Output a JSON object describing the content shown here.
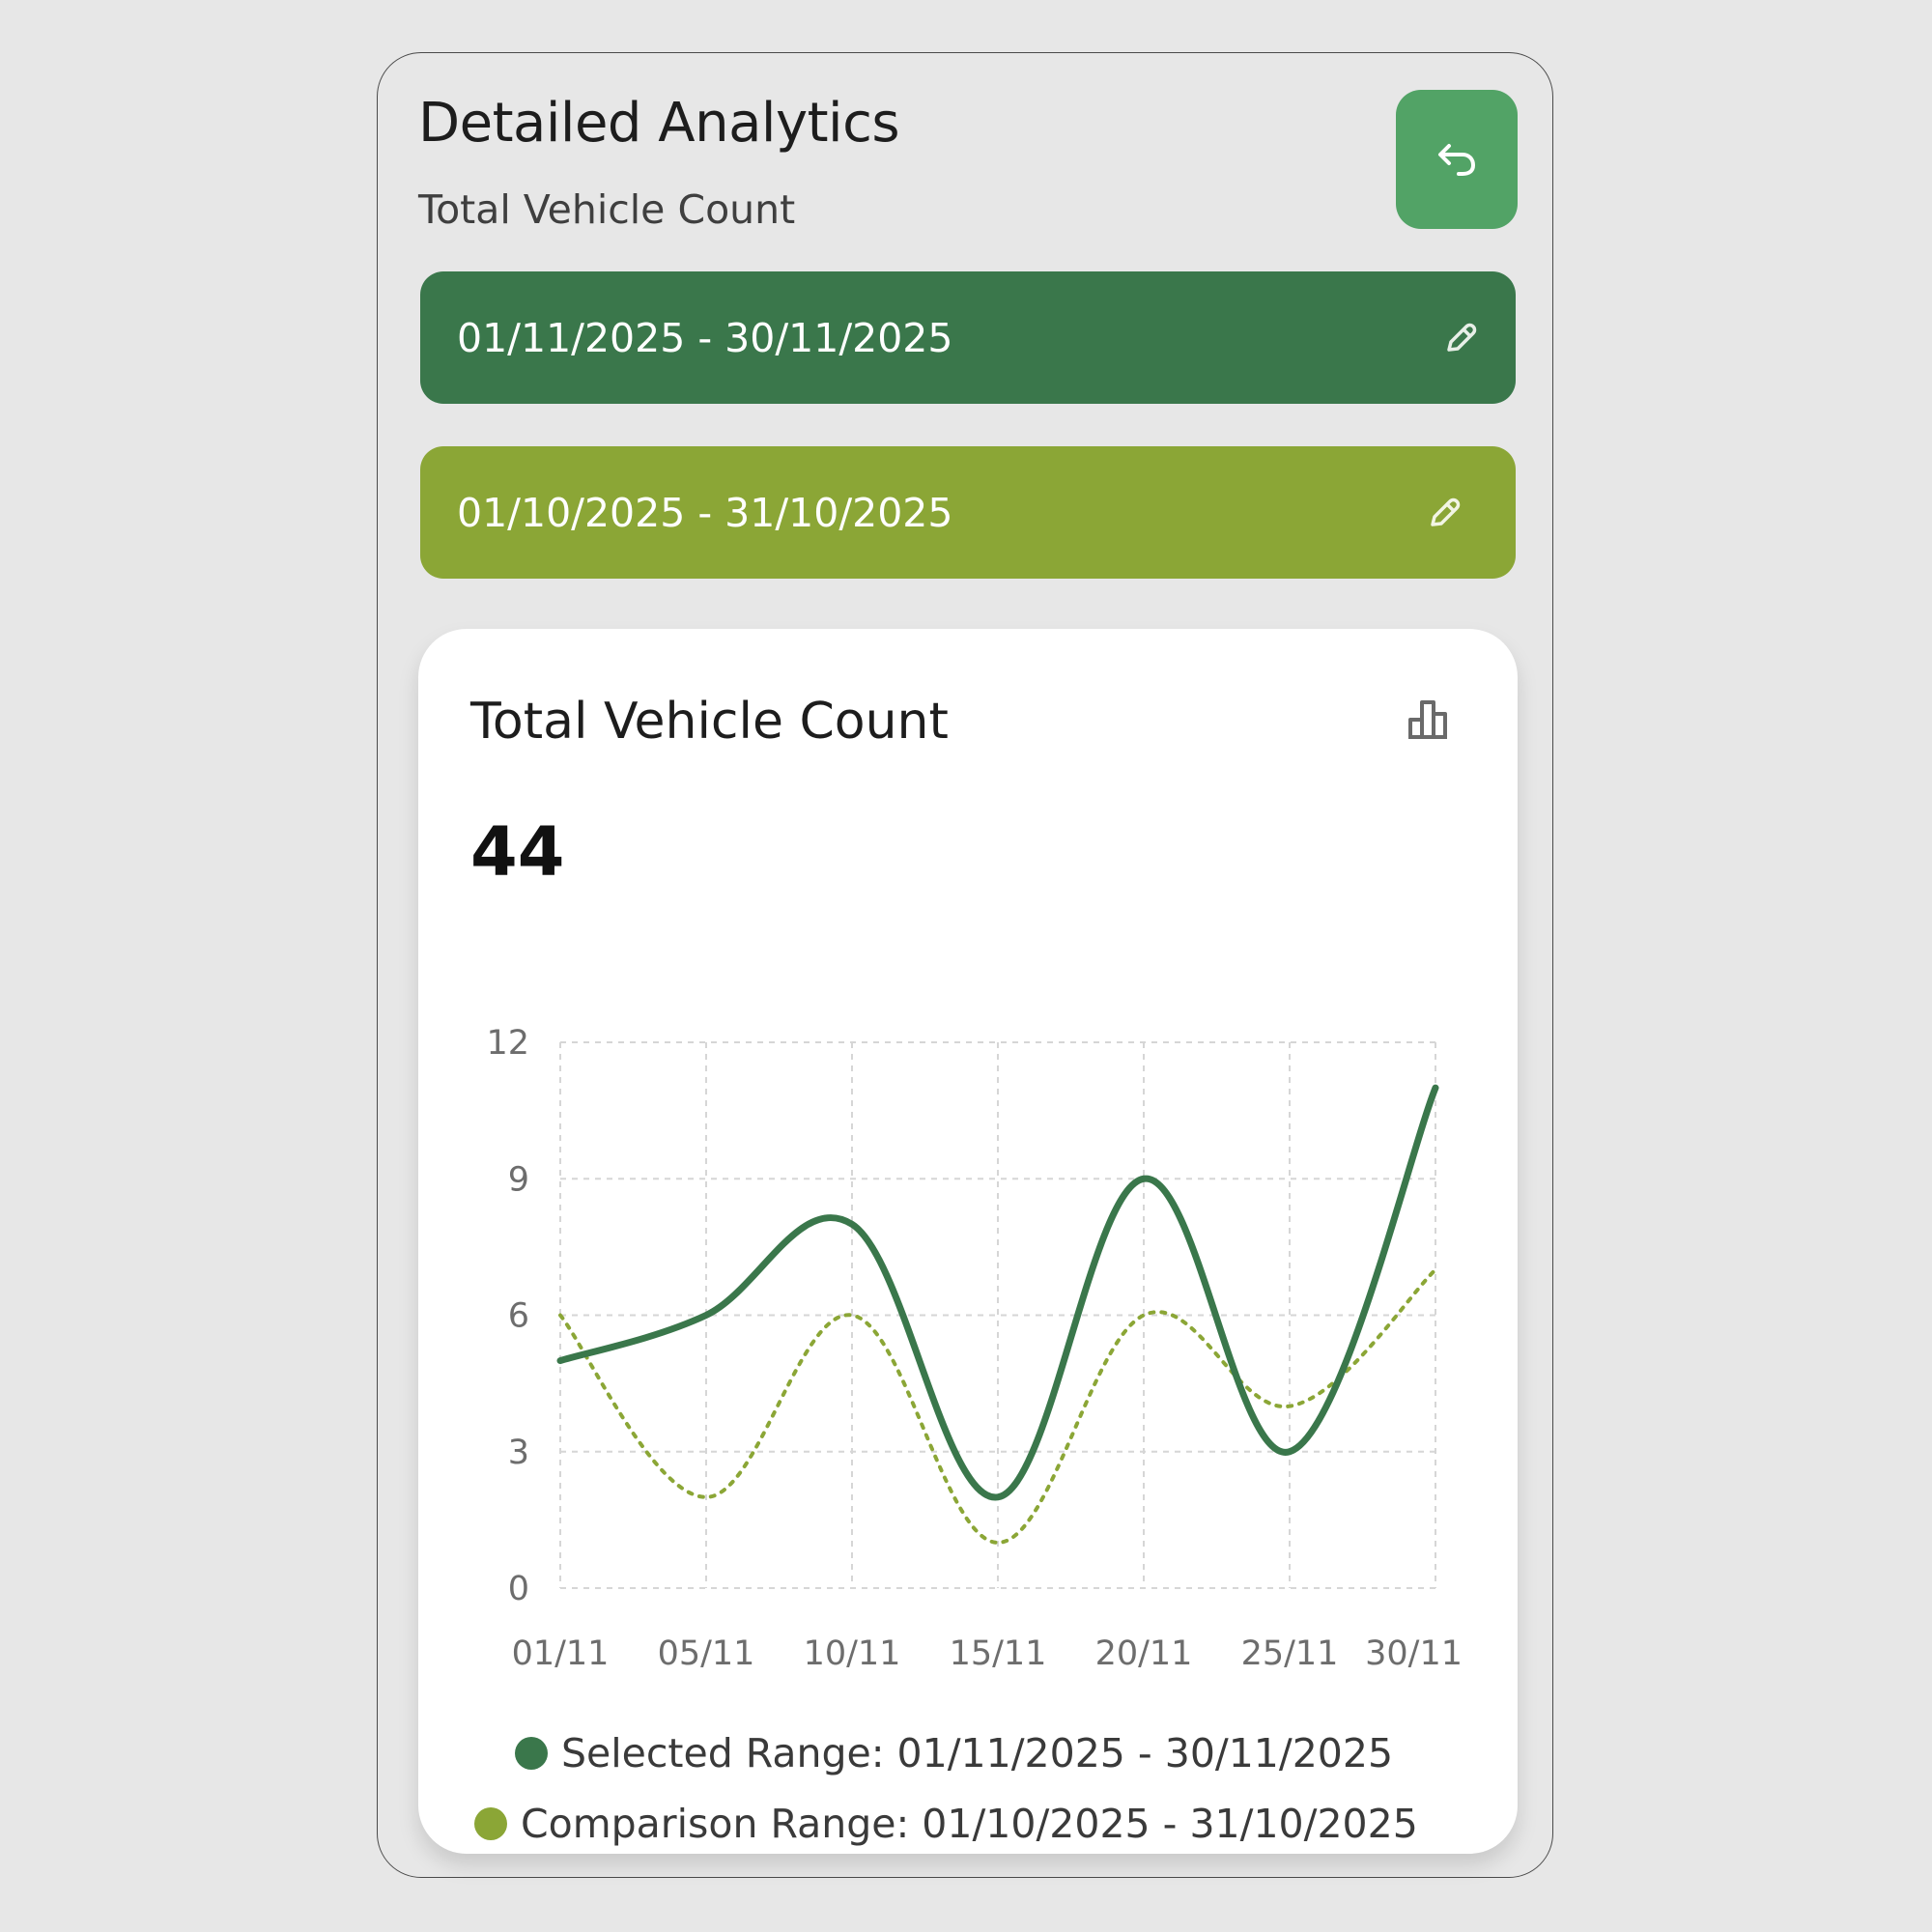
{
  "header": {
    "title": "Detailed Analytics",
    "subtitle": "Total Vehicle Count",
    "back_icon": "undo-arrow-icon"
  },
  "ranges": {
    "selected": {
      "label": "01/11/2025 - 30/11/2025",
      "color": "#3a774b",
      "icon": "pencil-icon"
    },
    "comparison": {
      "label": "01/10/2025 - 31/10/2025",
      "color": "#8ba636",
      "icon": "pencil-icon"
    }
  },
  "card": {
    "title": "Total Vehicle Count",
    "total": "44",
    "icon": "bar-chart-icon"
  },
  "chart_data": {
    "type": "line",
    "x": [
      "01/11",
      "05/11",
      "10/11",
      "15/11",
      "20/11",
      "25/11",
      "30/11"
    ],
    "ylim": [
      0,
      12
    ],
    "yticks": [
      "0",
      "3",
      "6",
      "9",
      "12"
    ],
    "grid": true,
    "series": [
      {
        "name": "Selected Range: 01/11/2025 - 30/11/2025",
        "values": [
          5,
          6,
          8,
          2,
          9,
          3,
          11
        ],
        "color": "#3a774b",
        "style": "solid"
      },
      {
        "name": "Comparison Range: 01/10/2025 - 31/10/2025",
        "values": [
          6,
          2,
          6,
          1,
          6,
          4,
          7
        ],
        "color": "#8ba636",
        "style": "dotted"
      }
    ]
  }
}
